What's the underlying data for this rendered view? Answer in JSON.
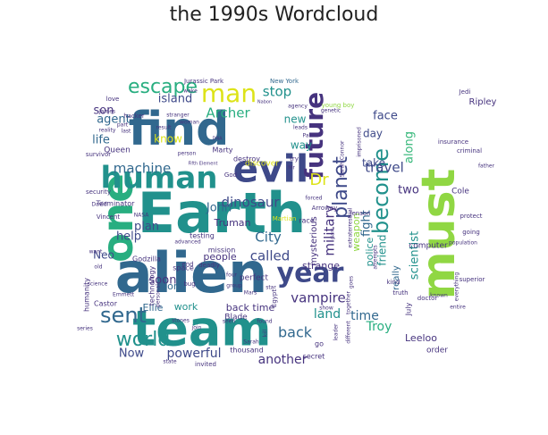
{
  "title": "the 1990s Wordcloud",
  "colors": {
    "dark_purple": "#46337e",
    "deep_violet": "#482878",
    "indigo": "#3e4989",
    "steel_blue": "#31688e",
    "blue": "#2c728e",
    "teal": "#21918c",
    "sea_green": "#28ae80",
    "green": "#35b779",
    "lime": "#90d743",
    "yellow": "#dde318"
  },
  "words": [
    {
      "text": "Earth",
      "color": "teal"
    },
    {
      "text": "alien",
      "color": "steel_blue"
    },
    {
      "text": "team",
      "color": "teal"
    },
    {
      "text": "one",
      "color": "sea_green"
    },
    {
      "text": "must",
      "color": "lime"
    },
    {
      "text": "find",
      "color": "steel_blue"
    },
    {
      "text": "evil",
      "color": "indigo"
    },
    {
      "text": "human",
      "color": "teal"
    },
    {
      "text": "year",
      "color": "indigo"
    },
    {
      "text": "future",
      "color": "dark_purple"
    },
    {
      "text": "become",
      "color": "teal"
    },
    {
      "text": "man",
      "color": "yellow"
    },
    {
      "text": "escape",
      "color": "sea_green"
    },
    {
      "text": "sent",
      "color": "steel_blue"
    },
    {
      "text": "world",
      "color": "teal"
    },
    {
      "text": "planet",
      "color": "indigo"
    },
    {
      "text": "Dr",
      "color": "yellow"
    },
    {
      "text": "dinosaur",
      "color": "indigo"
    },
    {
      "text": "machine",
      "color": "steel_blue"
    },
    {
      "text": "military",
      "color": "dark_purple"
    },
    {
      "text": "called",
      "color": "indigo"
    },
    {
      "text": "vampire",
      "color": "dark_purple"
    },
    {
      "text": "Archer",
      "color": "sea_green"
    },
    {
      "text": "travel",
      "color": "indigo"
    },
    {
      "text": "fight",
      "color": "steel_blue"
    },
    {
      "text": "land",
      "color": "teal"
    },
    {
      "text": "back",
      "color": "steel_blue"
    },
    {
      "text": "life",
      "color": "steel_blue"
    },
    {
      "text": "powerful",
      "color": "indigo"
    },
    {
      "text": "Now",
      "color": "indigo"
    },
    {
      "text": "another",
      "color": "dark_purple"
    },
    {
      "text": "time",
      "color": "steel_blue"
    },
    {
      "text": "Troy",
      "color": "sea_green"
    },
    {
      "text": "City",
      "color": "steel_blue"
    },
    {
      "text": "stop",
      "color": "teal"
    },
    {
      "text": "island",
      "color": "indigo"
    },
    {
      "text": "agent",
      "color": "steel_blue"
    },
    {
      "text": "son",
      "color": "dark_purple"
    },
    {
      "text": "face",
      "color": "indigo"
    },
    {
      "text": "day",
      "color": "indigo"
    },
    {
      "text": "take",
      "color": "indigo"
    },
    {
      "text": "two",
      "color": "dark_purple"
    },
    {
      "text": "along",
      "color": "green"
    },
    {
      "text": "scientist",
      "color": "teal"
    },
    {
      "text": "friend",
      "color": "teal"
    },
    {
      "text": "police",
      "color": "teal"
    },
    {
      "text": "weapon",
      "color": "lime"
    },
    {
      "text": "John",
      "color": "steel_blue"
    },
    {
      "text": "plan",
      "color": "indigo"
    },
    {
      "text": "help",
      "color": "indigo"
    },
    {
      "text": "Neo",
      "color": "indigo"
    },
    {
      "text": "soon",
      "color": "dark_purple"
    },
    {
      "text": "new",
      "color": "teal"
    },
    {
      "text": "way",
      "color": "teal"
    },
    {
      "text": "know",
      "color": "yellow"
    },
    {
      "text": "Truman",
      "color": "dark_purple"
    },
    {
      "text": "people",
      "color": "dark_purple"
    },
    {
      "text": "long",
      "color": "steel_blue"
    },
    {
      "text": "Ellie",
      "color": "steel_blue"
    },
    {
      "text": "work",
      "color": "teal"
    },
    {
      "text": "back time",
      "color": "dark_purple"
    },
    {
      "text": "strange",
      "color": "dark_purple"
    },
    {
      "text": "mysterious",
      "color": "dark_purple"
    },
    {
      "text": "really",
      "color": "steel_blue"
    },
    {
      "text": "Ripley",
      "color": "dark_purple"
    },
    {
      "text": "Cole",
      "color": "dark_purple"
    },
    {
      "text": "computer",
      "color": "dark_purple"
    },
    {
      "text": "Leeloo",
      "color": "dark_purple"
    },
    {
      "text": "order",
      "color": "dark_purple"
    },
    {
      "text": "July",
      "color": "dark_purple"
    },
    {
      "text": "Jedi",
      "color": "dark_purple"
    },
    {
      "text": "Blade",
      "color": "dark_purple"
    },
    {
      "text": "perfect",
      "color": "dark_purple"
    },
    {
      "text": "race",
      "color": "dark_purple"
    },
    {
      "text": "Marty",
      "color": "dark_purple"
    },
    {
      "text": "destroy",
      "color": "dark_purple"
    },
    {
      "text": "discover",
      "color": "yellow"
    },
    {
      "text": "Queen",
      "color": "dark_purple"
    },
    {
      "text": "Terminator",
      "color": "dark_purple"
    },
    {
      "text": "mission",
      "color": "dark_purple"
    },
    {
      "text": "humanity",
      "color": "dark_purple"
    },
    {
      "text": "technology",
      "color": "dark_purple"
    },
    {
      "text": "Castor",
      "color": "dark_purple"
    },
    {
      "text": "space",
      "color": "dark_purple"
    },
    {
      "text": "testing",
      "color": "dark_purple"
    },
    {
      "text": "Godzilla",
      "color": "dark_purple"
    },
    {
      "text": "secret",
      "color": "dark_purple"
    },
    {
      "text": "thousand",
      "color": "dark_purple"
    },
    {
      "text": "go",
      "color": "dark_purple"
    },
    {
      "text": "Jurassic Park",
      "color": "dark_purple"
    },
    {
      "text": "New York",
      "color": "steel_blue"
    },
    {
      "text": "young boy",
      "color": "lime"
    },
    {
      "text": "survivor",
      "color": "dark_purple"
    },
    {
      "text": "security",
      "color": "dark_purple"
    },
    {
      "text": "Vincent",
      "color": "dark_purple"
    },
    {
      "text": "NASA",
      "color": "dark_purple"
    },
    {
      "text": "David",
      "color": "dark_purple"
    },
    {
      "text": "Martian",
      "color": "yellow"
    },
    {
      "text": "Jenson",
      "color": "dark_purple"
    },
    {
      "text": "superior",
      "color": "dark_purple"
    },
    {
      "text": "insurance",
      "color": "dark_purple"
    },
    {
      "text": "criminal",
      "color": "dark_purple"
    },
    {
      "text": "going",
      "color": "dark_purple"
    },
    {
      "text": "protect",
      "color": "dark_purple"
    },
    {
      "text": "doctor",
      "color": "dark_purple"
    },
    {
      "text": "truth",
      "color": "dark_purple"
    },
    {
      "text": "kind",
      "color": "dark_purple"
    },
    {
      "text": "entire",
      "color": "dark_purple"
    },
    {
      "text": "population",
      "color": "dark_purple"
    },
    {
      "text": "everything",
      "color": "dark_purple"
    },
    {
      "text": "known",
      "color": "dark_purple"
    },
    {
      "text": "Arroway",
      "color": "dark_purple"
    },
    {
      "text": "love",
      "color": "dark_purple"
    },
    {
      "text": "hacker",
      "color": "dark_purple"
    },
    {
      "text": "stranger",
      "color": "dark_purple"
    },
    {
      "text": "woman",
      "color": "dark_purple"
    },
    {
      "text": "James",
      "color": "dark_purple"
    },
    {
      "text": "reality",
      "color": "dark_purple"
    },
    {
      "text": "result",
      "color": "dark_purple"
    },
    {
      "text": "wake",
      "color": "dark_purple"
    },
    {
      "text": "leads",
      "color": "dark_purple"
    },
    {
      "text": "Park",
      "color": "dark_purple"
    },
    {
      "text": "genetic",
      "color": "dark_purple"
    },
    {
      "text": "imprisoned",
      "color": "dark_purple"
    },
    {
      "text": "Sarah Connor",
      "color": "dark_purple"
    },
    {
      "text": "forced",
      "color": "dark_purple"
    },
    {
      "text": "advanced",
      "color": "dark_purple"
    },
    {
      "text": "end",
      "color": "dark_purple"
    },
    {
      "text": "deadly",
      "color": "dark_purple"
    },
    {
      "text": "bug",
      "color": "dark_purple"
    },
    {
      "text": "four",
      "color": "dark_purple"
    },
    {
      "text": "group",
      "color": "dark_purple"
    },
    {
      "text": "star",
      "color": "dark_purple"
    },
    {
      "text": "Egypt",
      "color": "dark_purple"
    },
    {
      "text": "show",
      "color": "dark_purple"
    },
    {
      "text": "stones",
      "color": "dark_purple"
    },
    {
      "text": "join",
      "color": "dark_purple"
    },
    {
      "text": "seen",
      "color": "dark_purple"
    },
    {
      "text": "found",
      "color": "dark_purple"
    },
    {
      "text": "kill",
      "color": "dark_purple"
    },
    {
      "text": "Sarah",
      "color": "dark_purple"
    },
    {
      "text": "goes",
      "color": "dark_purple"
    },
    {
      "text": "together",
      "color": "dark_purple"
    },
    {
      "text": "different",
      "color": "dark_purple"
    },
    {
      "text": "leader",
      "color": "dark_purple"
    },
    {
      "text": "state",
      "color": "dark_purple"
    },
    {
      "text": "invited",
      "color": "dark_purple"
    },
    {
      "text": "series",
      "color": "dark_purple"
    },
    {
      "text": "want",
      "color": "dark_purple"
    },
    {
      "text": "science",
      "color": "dark_purple"
    },
    {
      "text": "old",
      "color": "dark_purple"
    },
    {
      "text": "Fifth Element",
      "color": "dark_purple"
    },
    {
      "text": "personal",
      "color": "dark_purple"
    },
    {
      "text": "Mars",
      "color": "dark_purple"
    },
    {
      "text": "try",
      "color": "dark_purple"
    },
    {
      "text": "Mr",
      "color": "dark_purple"
    },
    {
      "text": "God",
      "color": "dark_purple"
    },
    {
      "text": "attempts",
      "color": "dark_purple"
    },
    {
      "text": "extraterrestrial",
      "color": "dark_purple"
    },
    {
      "text": "part",
      "color": "dark_purple"
    },
    {
      "text": "last",
      "color": "dark_purple"
    },
    {
      "text": "person",
      "color": "dark_purple"
    },
    {
      "text": "DNA",
      "color": "dark_purple"
    },
    {
      "text": "Nabon",
      "color": "dark_purple"
    },
    {
      "text": "agency",
      "color": "dark_purple"
    },
    {
      "text": "giant",
      "color": "dark_purple"
    },
    {
      "text": "Emmett",
      "color": "dark_purple"
    },
    {
      "text": "father",
      "color": "dark_purple"
    }
  ]
}
